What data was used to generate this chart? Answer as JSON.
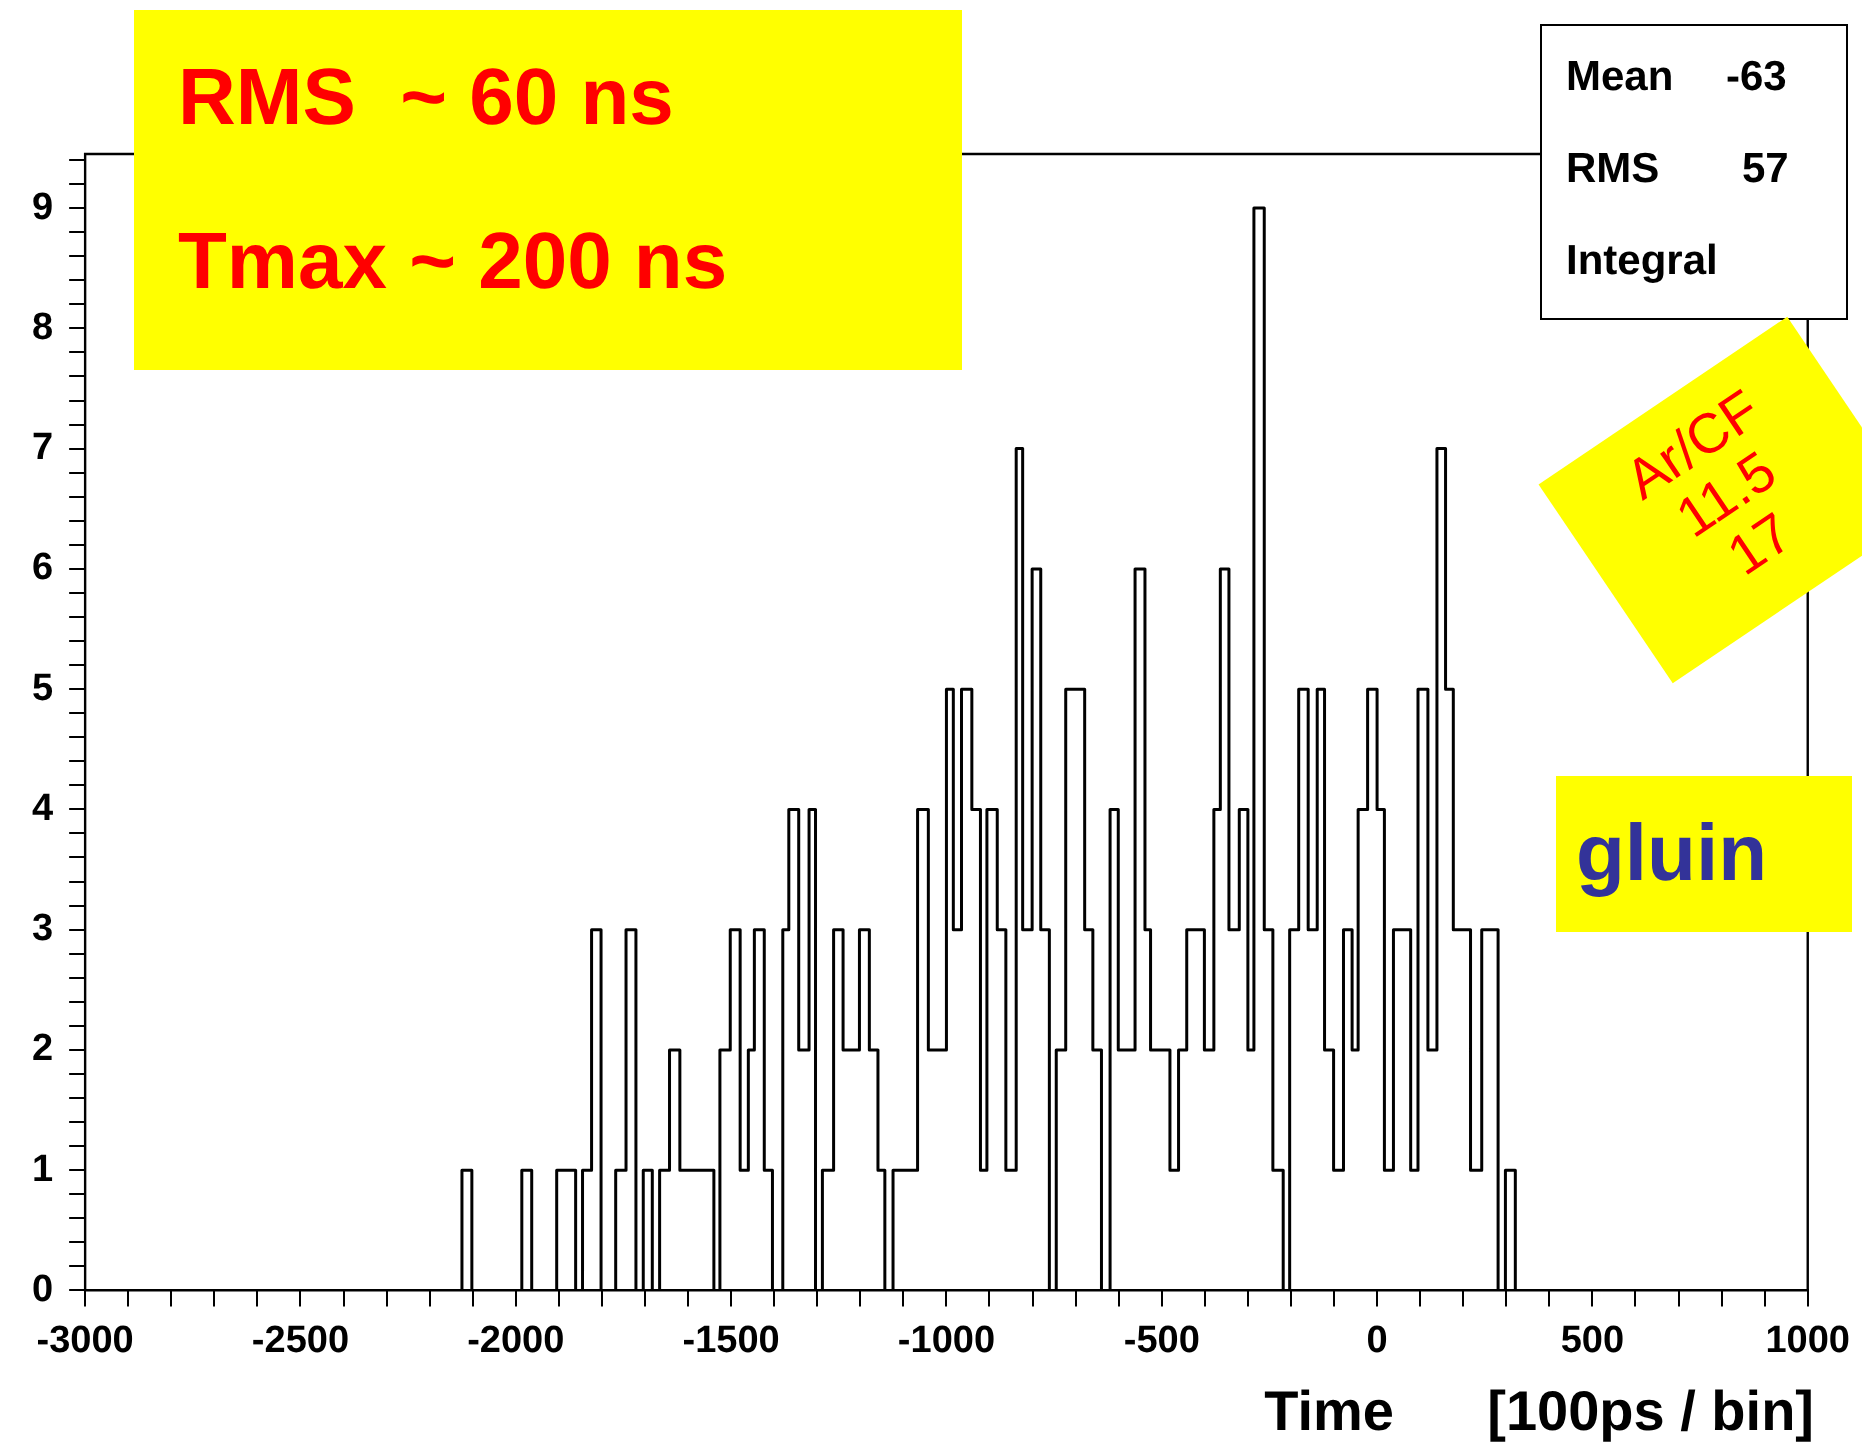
{
  "chart_data": {
    "type": "histogram",
    "xlabel": "Time      [100ps / bin]",
    "bins": [
      -3000,
      -2125,
      -2102,
      -1986,
      -1963,
      -1905,
      -1861,
      -1845,
      -1824,
      -1802,
      -1768,
      -1744,
      -1721,
      -1704,
      -1683,
      -1666,
      -1643,
      -1619,
      -1540,
      -1526,
      -1502,
      -1479,
      -1460,
      -1446,
      -1423,
      -1404,
      -1380,
      -1366,
      -1343,
      -1319,
      -1304,
      -1288,
      -1262,
      -1240,
      -1202,
      -1179,
      -1159,
      -1143,
      -1124,
      -1067,
      -1042,
      -1000,
      -984,
      -965,
      -941,
      -921,
      -906,
      -882,
      -862,
      -838,
      -823,
      -801,
      -781,
      -761,
      -745,
      -723,
      -679,
      -660,
      -640,
      -620,
      -601,
      -562,
      -539,
      -526,
      -481,
      -461,
      -442,
      -401,
      -379,
      -364,
      -344,
      -320,
      -300,
      -286,
      -262,
      -242,
      -218,
      -203,
      -182,
      -160,
      -139,
      -122,
      -101,
      -78,
      -58,
      -44,
      -22,
      0,
      17,
      38,
      78,
      95,
      118,
      139,
      159,
      177,
      217,
      243,
      281,
      298,
      321,
      1000
    ],
    "values": [
      0,
      1,
      0,
      1,
      0,
      1,
      0,
      1,
      3,
      0,
      1,
      3,
      0,
      1,
      0,
      1,
      2,
      1,
      0,
      2,
      3,
      1,
      2,
      3,
      1,
      0,
      3,
      4,
      2,
      4,
      0,
      1,
      3,
      2,
      3,
      2,
      1,
      0,
      1,
      4,
      2,
      5,
      3,
      5,
      4,
      1,
      4,
      3,
      1,
      7,
      3,
      6,
      3,
      0,
      2,
      5,
      3,
      2,
      0,
      4,
      2,
      6,
      3,
      2,
      1,
      2,
      3,
      2,
      4,
      6,
      3,
      4,
      2,
      9,
      3,
      1,
      0,
      3,
      5,
      3,
      5,
      2,
      1,
      3,
      2,
      4,
      5,
      4,
      1,
      3,
      1,
      5,
      2,
      7,
      5,
      3,
      1,
      3,
      0,
      1,
      0
    ],
    "color": "#000000",
    "xlim": [
      -3000,
      1000
    ],
    "xticks": [
      -3000,
      {
        "value": -2900,
        "label": null
      },
      {
        "value": -2800,
        "label": null
      },
      {
        "value": -2700,
        "label": null
      },
      {
        "value": -2600,
        "label": null
      },
      -2500,
      {
        "value": -2400,
        "label": null
      },
      {
        "value": -2300,
        "label": null
      },
      {
        "value": -2200,
        "label": null
      },
      {
        "value": -2100,
        "label": null
      },
      -2000,
      {
        "value": -1900,
        "label": null
      },
      {
        "value": -1800,
        "label": null
      },
      {
        "value": -1700,
        "label": null
      },
      {
        "value": -1600,
        "label": null
      },
      -1500,
      {
        "value": -1400,
        "label": null
      },
      {
        "value": -1300,
        "label": null
      },
      {
        "value": -1200,
        "label": null
      },
      {
        "value": -1100,
        "label": null
      },
      -1000,
      {
        "value": -900,
        "label": null
      },
      {
        "value": -800,
        "label": null
      },
      {
        "value": -700,
        "label": null
      },
      {
        "value": -600,
        "label": null
      },
      -500,
      {
        "value": -400,
        "label": null
      },
      {
        "value": -300,
        "label": null
      },
      {
        "value": -200,
        "label": null
      },
      {
        "value": -100,
        "label": null
      },
      0,
      {
        "value": 100,
        "label": null
      },
      {
        "value": 200,
        "label": null
      },
      {
        "value": 300,
        "label": null
      },
      {
        "value": 400,
        "label": null
      },
      500,
      {
        "value": 600,
        "label": null
      },
      {
        "value": 700,
        "label": null
      },
      {
        "value": 800,
        "label": null
      },
      {
        "value": 900,
        "label": null
      },
      1000
    ],
    "ylim": [
      0,
      9.45
    ],
    "yticks": [
      0,
      {
        "value": 0.2,
        "label": null
      },
      {
        "value": 0.4,
        "label": null
      },
      {
        "value": 0.6,
        "label": null
      },
      {
        "value": 0.8,
        "label": null
      },
      1,
      {
        "value": 1.2,
        "label": null
      },
      {
        "value": 1.4,
        "label": null
      },
      {
        "value": 1.6,
        "label": null
      },
      {
        "value": 1.8,
        "label": null
      },
      2,
      {
        "value": 2.2,
        "label": null
      },
      {
        "value": 2.4,
        "label": null
      },
      {
        "value": 2.6,
        "label": null
      },
      {
        "value": 2.8,
        "label": null
      },
      3,
      {
        "value": 3.2,
        "label": null
      },
      {
        "value": 3.4,
        "label": null
      },
      {
        "value": 3.6,
        "label": null
      },
      {
        "value": 3.8,
        "label": null
      },
      4,
      {
        "value": 4.2,
        "label": null
      },
      {
        "value": 4.4,
        "label": null
      },
      {
        "value": 4.6,
        "label": null
      },
      {
        "value": 4.8,
        "label": null
      },
      5,
      {
        "value": 5.2,
        "label": null
      },
      {
        "value": 5.4,
        "label": null
      },
      {
        "value": 5.6,
        "label": null
      },
      {
        "value": 5.8,
        "label": null
      },
      6,
      {
        "value": 6.2,
        "label": null
      },
      {
        "value": 6.4,
        "label": null
      },
      {
        "value": 6.6,
        "label": null
      },
      {
        "value": 6.8,
        "label": null
      },
      7,
      {
        "value": 7.2,
        "label": null
      },
      {
        "value": 7.4,
        "label": null
      },
      {
        "value": 7.6,
        "label": null
      },
      {
        "value": 7.8,
        "label": null
      },
      8,
      {
        "value": 8.2,
        "label": null
      },
      {
        "value": 8.4,
        "label": null
      },
      {
        "value": 8.6,
        "label": null
      },
      {
        "value": 8.8,
        "label": null
      },
      9,
      {
        "value": 9.2,
        "label": null
      },
      {
        "value": 9.4,
        "label": null
      }
    ],
    "grid": false,
    "legend": false,
    "annotations": [
      "RMS  ~ 60 ns",
      "Tmax ~ 200 ns",
      "Mean",
      "-63",
      "RMS",
      "57",
      "Integral",
      "Ar/CF",
      "11.5",
      "17",
      "gluin"
    ]
  }
}
